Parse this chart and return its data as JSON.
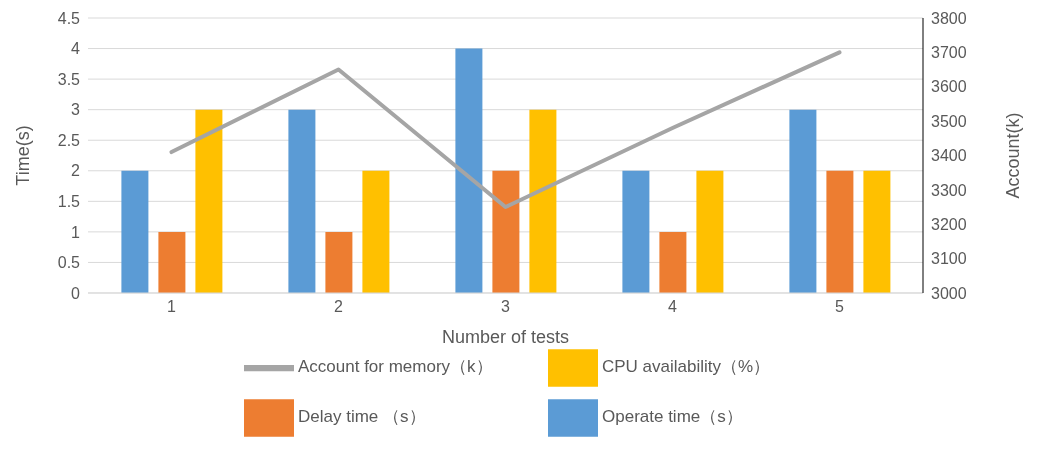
{
  "chart_data": {
    "type": "bar",
    "categories": [
      "1",
      "2",
      "3",
      "4",
      "5"
    ],
    "xlabel": "Number of tests",
    "ylabel": "Time(s)",
    "y2label": "Account(k)",
    "series": [
      {
        "name": "Operate time（s）",
        "color": "#5b9bd5",
        "values": [
          2,
          3,
          4,
          2,
          3
        ]
      },
      {
        "name": "Delay time （s）",
        "color": "#ed7d31",
        "values": [
          1,
          1,
          2,
          1,
          2
        ]
      },
      {
        "name": "CPU availability（%）",
        "color": "#ffc000",
        "values": [
          3,
          2,
          3,
          2,
          2
        ]
      },
      {
        "name": "Account for memory（k）",
        "type": "line",
        "axis": "y2",
        "color": "#a5a5a5",
        "values": [
          3410,
          3650,
          3250,
          3480,
          3700
        ]
      }
    ],
    "ylim": [
      0,
      4.5
    ],
    "yticks": [
      0,
      0.5,
      1,
      1.5,
      2,
      2.5,
      3,
      3.5,
      4,
      4.5
    ],
    "y2lim": [
      3000,
      3800
    ],
    "y2ticks": [
      3000,
      3100,
      3200,
      3300,
      3400,
      3500,
      3600,
      3700,
      3800
    ],
    "grid": "y",
    "legend": "bottom",
    "marker": "none",
    "line_style": "solid"
  }
}
